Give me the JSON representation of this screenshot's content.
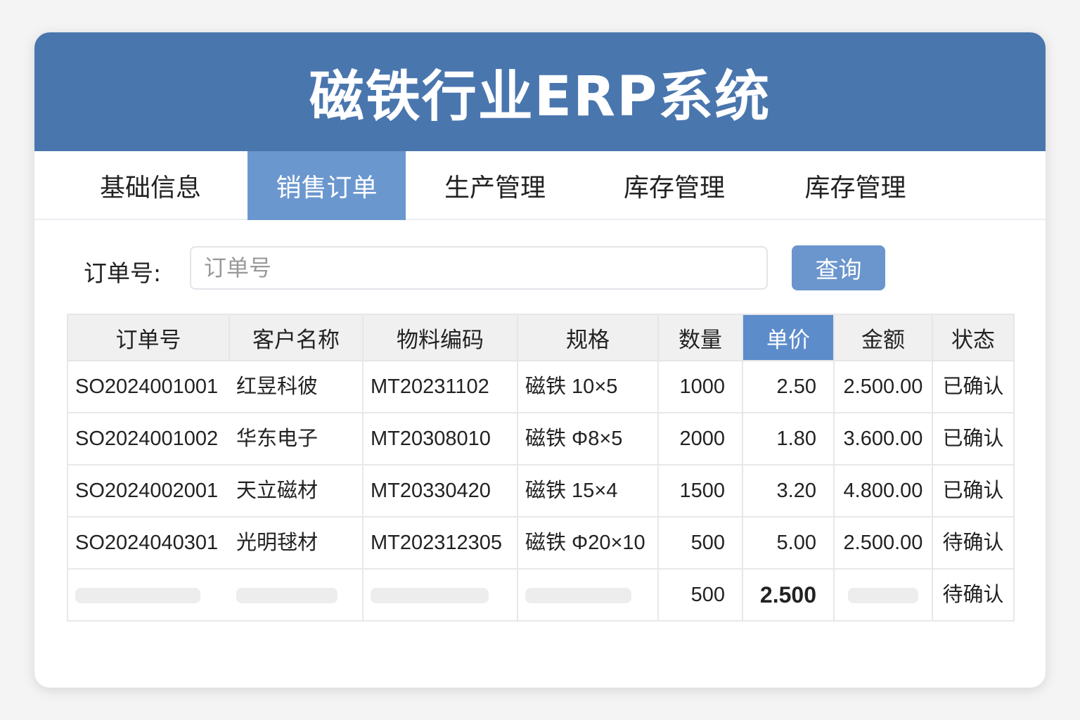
{
  "title": "磁铁行业ERP系统",
  "tabs": [
    {
      "label": "基础信息"
    },
    {
      "label": "销售订单"
    },
    {
      "label": "生产管理"
    },
    {
      "label": "库存管理"
    },
    {
      "label": "库存管理"
    }
  ],
  "active_tab": 1,
  "search": {
    "label": "订单号:",
    "placeholder": "订单号",
    "value": "",
    "button": "查询"
  },
  "table": {
    "columns": [
      "订单号",
      "客户名称",
      "物料编码",
      "规格",
      "数量",
      "单价",
      "金额",
      "状态"
    ],
    "highlighted_column": "单价",
    "rows": [
      {
        "order": "SO2024001001",
        "customer": "红昱科彼",
        "material": "MT20231102",
        "spec": "磁铁 10×5",
        "qty": "1000",
        "price": "2.50",
        "amount": "2.500.00",
        "status": "已确认"
      },
      {
        "order": "SO2024001002",
        "customer": "华东电子",
        "material": "MT20308010",
        "spec": "磁铁 Φ8×5",
        "qty": "2000",
        "price": "1.80",
        "amount": "3.600.00",
        "status": "已确认"
      },
      {
        "order": "SO2024002001",
        "customer": "天立磁材",
        "material": "MT20330420",
        "spec": "磁铁 15×4",
        "qty": "1500",
        "price": "3.20",
        "amount": "4.800.00",
        "status": "已确认"
      },
      {
        "order": "SO2024040301",
        "customer": "光明毬材",
        "material": "MT202312305",
        "spec": "磁铁 Φ20×10",
        "qty": "500",
        "price": "5.00",
        "amount": "2.500.00",
        "status": "待确认"
      },
      {
        "qty": "500",
        "price": "2.500",
        "status": "待确认"
      }
    ]
  },
  "colors": {
    "header": "#4a76ae",
    "active_tab": "#6b97cf",
    "button": "#6a95cd"
  }
}
